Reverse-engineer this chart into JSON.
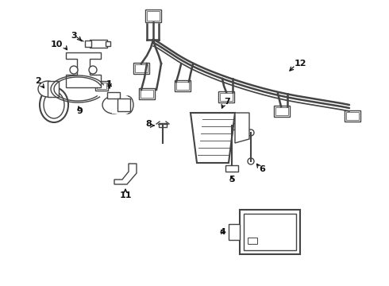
{
  "background_color": "#ffffff",
  "line_color": "#444444",
  "text_color": "#111111",
  "fig_width": 4.9,
  "fig_height": 3.6,
  "dpi": 100
}
